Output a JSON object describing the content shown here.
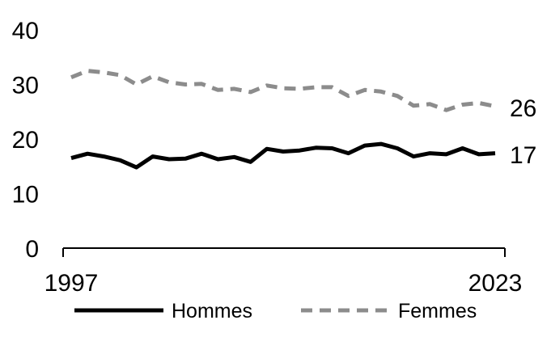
{
  "chart_data": {
    "type": "line",
    "x": [
      1997,
      1998,
      1999,
      2000,
      2001,
      2002,
      2003,
      2004,
      2005,
      2006,
      2007,
      2008,
      2009,
      2010,
      2011,
      2012,
      2013,
      2014,
      2015,
      2016,
      2017,
      2018,
      2019,
      2020,
      2021,
      2022,
      2023
    ],
    "x_ticks": [
      "1997",
      "2023"
    ],
    "y_ticks": [
      "0",
      "10",
      "20",
      "30",
      "40"
    ],
    "ylim": [
      0,
      40
    ],
    "grid": false,
    "legend_position": "bottom",
    "series": [
      {
        "name": "Hommes",
        "color": "#000000",
        "style": "solid",
        "end_label": "17",
        "values": [
          16.5,
          17.3,
          16.8,
          16.1,
          14.8,
          16.8,
          16.3,
          16.4,
          17.3,
          16.3,
          16.7,
          15.8,
          18.2,
          17.7,
          17.9,
          18.4,
          18.3,
          17.4,
          18.8,
          19.1,
          18.3,
          16.8,
          17.4,
          17.2,
          18.3,
          17.2,
          17.4
        ]
      },
      {
        "name": "Femmes",
        "color": "#8c8c8c",
        "style": "dashed",
        "end_label": "26",
        "values": [
          31.3,
          32.5,
          32.2,
          31.7,
          30.0,
          31.5,
          30.4,
          30.0,
          30.1,
          29.0,
          29.2,
          28.6,
          29.8,
          29.3,
          29.2,
          29.5,
          29.5,
          27.9,
          29.0,
          28.7,
          27.9,
          26.1,
          26.4,
          25.3,
          26.3,
          26.6,
          26.0
        ]
      }
    ]
  }
}
